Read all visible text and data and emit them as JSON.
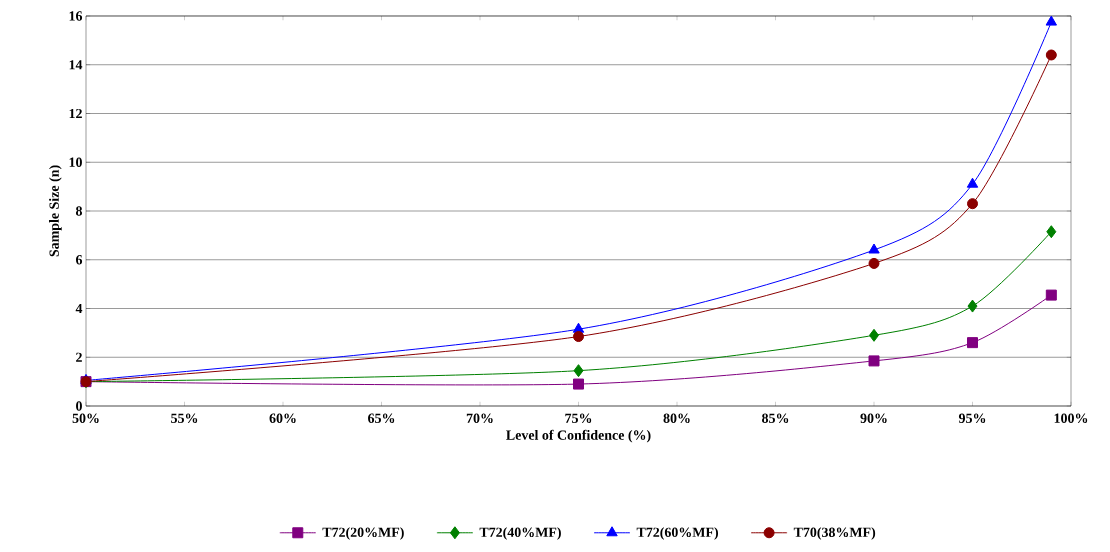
{
  "chart_data": {
    "type": "line",
    "xlabel": "Level of Confidence (%)",
    "ylabel": "Sample Size (n)",
    "x": [
      50,
      75,
      90,
      95,
      99
    ],
    "series": [
      {
        "name": "T72(20%MF)",
        "color": "#800080",
        "marker": "square",
        "values": [
          1.0,
          0.9,
          1.85,
          2.6,
          4.55
        ]
      },
      {
        "name": "T72(40%MF)",
        "color": "#008000",
        "marker": "diamond",
        "values": [
          1.0,
          1.45,
          2.9,
          4.1,
          7.15
        ]
      },
      {
        "name": "T72(60%MF)",
        "color": "#0000ff",
        "marker": "triangle",
        "values": [
          1.05,
          3.15,
          6.4,
          9.1,
          15.75
        ]
      },
      {
        "name": "T70(38%MF)",
        "color": "#8b0000",
        "marker": "circle",
        "values": [
          1.0,
          2.85,
          5.85,
          8.3,
          14.4
        ]
      }
    ],
    "xlim": [
      50,
      100
    ],
    "xticks": [
      {
        "value": 50,
        "label": "50%"
      },
      {
        "value": 55,
        "label": "55%"
      },
      {
        "value": 60,
        "label": "60%"
      },
      {
        "value": 65,
        "label": "65%"
      },
      {
        "value": 70,
        "label": "70%"
      },
      {
        "value": 75,
        "label": "75%"
      },
      {
        "value": 80,
        "label": "80%"
      },
      {
        "value": 85,
        "label": "85%"
      },
      {
        "value": 90,
        "label": "90%"
      },
      {
        "value": 95,
        "label": "95%"
      },
      {
        "value": 100,
        "label": "100%"
      }
    ],
    "ylim": [
      0,
      16
    ],
    "yticks": [
      0,
      2,
      4,
      6,
      8,
      10,
      12,
      14,
      16
    ],
    "grid": "y",
    "legend": "bottom",
    "line_style": "solid"
  }
}
